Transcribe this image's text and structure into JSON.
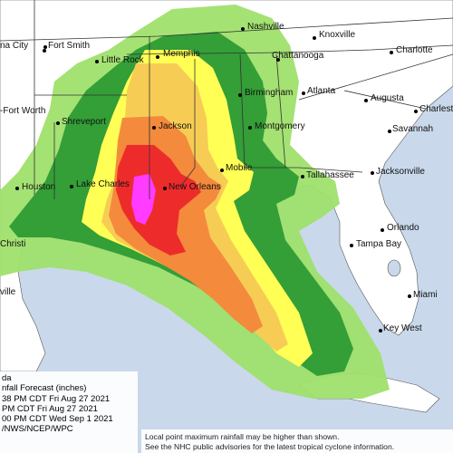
{
  "colors": {
    "water": "#c9d8ea",
    "land": "#ffffff",
    "band_1": "#9fe06b",
    "band_2": "#2e9a34",
    "band_3": "#ffff55",
    "band_4": "#f7cc55",
    "band_5": "#f48a3c",
    "band_6": "#ee2b2b",
    "band_7": "#ff3cff"
  },
  "cities": [
    {
      "name": "na City",
      "id": "oklahoma-city"
    },
    {
      "name": "Fort Smith",
      "id": "fort-smith"
    },
    {
      "name": "Little Rock",
      "id": "little-rock"
    },
    {
      "name": "Memphis",
      "id": "memphis"
    },
    {
      "name": "Nashville",
      "id": "nashville"
    },
    {
      "name": "Knoxville",
      "id": "knoxville"
    },
    {
      "name": "Charlotte",
      "id": "charlotte"
    },
    {
      "name": "Chattanooga",
      "id": "chattanooga"
    },
    {
      "name": "Birmingham",
      "id": "birmingham"
    },
    {
      "name": "Atlanta",
      "id": "atlanta"
    },
    {
      "name": "Augusta",
      "id": "augusta"
    },
    {
      "name": "Charleston",
      "id": "charleston"
    },
    {
      "name": "Savannah",
      "id": "savannah"
    },
    {
      "name": "-Fort Worth",
      "id": "fort-worth"
    },
    {
      "name": "Shreveport",
      "id": "shreveport"
    },
    {
      "name": "Jackson",
      "id": "jackson"
    },
    {
      "name": "Montgomery",
      "id": "montgomery"
    },
    {
      "name": "Mobile",
      "id": "mobile"
    },
    {
      "name": "Tallahassee",
      "id": "tallahassee"
    },
    {
      "name": "Jacksonville",
      "id": "jacksonville"
    },
    {
      "name": "Lake Charles",
      "id": "lake-charles"
    },
    {
      "name": "New Orleans",
      "id": "new-orleans"
    },
    {
      "name": "Houston",
      "id": "houston"
    },
    {
      "name": "Christi",
      "id": "corpus-christi"
    },
    {
      "name": "Orlando",
      "id": "orlando"
    },
    {
      "name": "Tampa Bay",
      "id": "tampa-bay"
    },
    {
      "name": "ville",
      "id": "brownsville"
    },
    {
      "name": "Miami",
      "id": "miami"
    },
    {
      "name": "Key West",
      "id": "key-west"
    }
  ],
  "info": {
    "storm": "da",
    "product": "nfall Forecast (inches)",
    "issued": "38 PM CDT Fri Aug 27 2021",
    "valid_start": "PM CDT Fri Aug 27 2021",
    "valid_end": "00 PM CDT Wed Sep 1 2021",
    "source": "/NWS/NCEP/WPC"
  },
  "note": {
    "line1": "Local point maximum rainfall may be higher than shown.",
    "line2": "See the NHC public advisories for the latest tropical cyclone information."
  }
}
